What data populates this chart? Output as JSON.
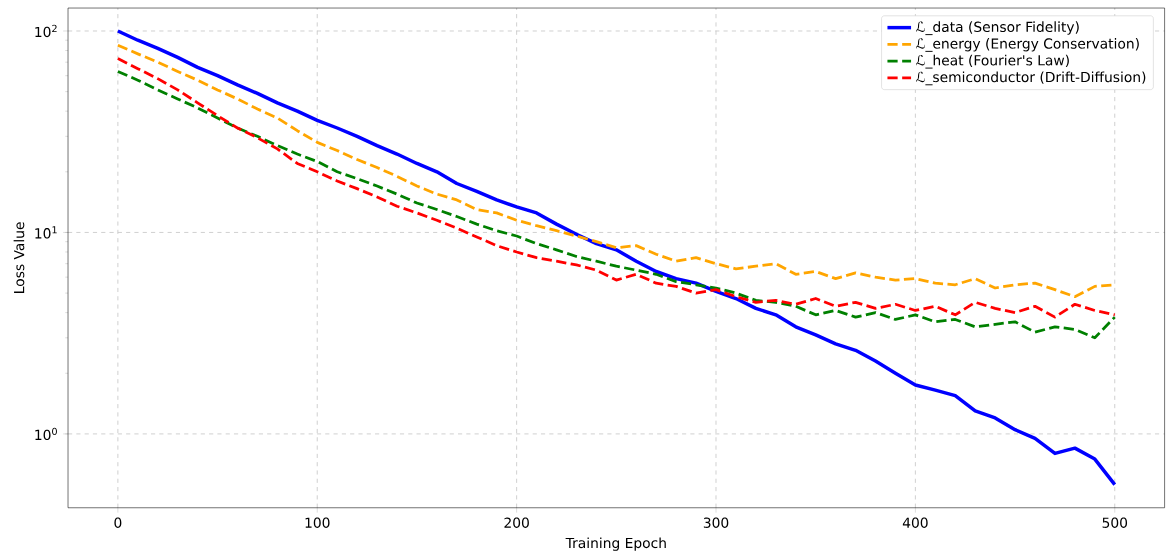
{
  "chart_data": {
    "type": "line",
    "xlabel": "Training Epoch",
    "ylabel": "Loss Value",
    "x": [
      0,
      10,
      20,
      30,
      40,
      50,
      60,
      70,
      80,
      90,
      100,
      110,
      120,
      130,
      140,
      150,
      160,
      170,
      180,
      190,
      200,
      210,
      220,
      230,
      240,
      250,
      260,
      270,
      280,
      290,
      300,
      310,
      320,
      330,
      340,
      350,
      360,
      370,
      380,
      390,
      400,
      410,
      420,
      430,
      440,
      450,
      460,
      470,
      480,
      490,
      500
    ],
    "series": [
      {
        "name": "ℒ_data (Sensor Fidelity)",
        "color": "#0000ff",
        "line_style": "solid",
        "values": [
          100,
          90,
          82,
          74,
          66,
          60,
          54,
          49,
          44,
          40,
          36,
          33,
          30,
          27,
          24.5,
          22,
          20,
          17.5,
          16,
          14.5,
          13.4,
          12.5,
          11,
          9.8,
          8.8,
          8.2,
          7.2,
          6.4,
          5.9,
          5.6,
          5.1,
          4.7,
          4.2,
          3.9,
          3.4,
          3.1,
          2.8,
          2.6,
          2.3,
          2.0,
          1.75,
          1.65,
          1.55,
          1.3,
          1.2,
          1.05,
          0.95,
          0.8,
          0.85,
          0.75,
          0.56
        ]
      },
      {
        "name": "ℒ_energy (Energy Conservation)",
        "color": "#ffa500",
        "line_style": "dashed",
        "values": [
          85,
          77,
          70,
          63,
          57,
          51,
          46,
          41,
          37,
          32,
          28,
          25.5,
          23,
          21,
          19,
          17,
          15.5,
          14.5,
          13,
          12.5,
          11.5,
          10.8,
          10.2,
          9.6,
          9,
          8.4,
          8.6,
          7.8,
          7.2,
          7.5,
          7.0,
          6.6,
          6.8,
          7.0,
          6.2,
          6.4,
          5.9,
          6.3,
          6.0,
          5.8,
          5.9,
          5.6,
          5.5,
          5.9,
          5.3,
          5.5,
          5.6,
          5.2,
          4.8,
          5.4,
          5.5
        ]
      },
      {
        "name": "ℒ_heat (Fourier's Law)",
        "color": "#008000",
        "line_style": "dashed",
        "values": [
          63,
          57,
          51,
          46,
          41.5,
          37,
          33,
          30,
          27,
          24.5,
          22.5,
          20,
          18.5,
          17,
          15.5,
          14,
          13,
          12,
          11,
          10.2,
          9.6,
          8.8,
          8.2,
          7.6,
          7.2,
          6.8,
          6.5,
          6.2,
          5.7,
          5.5,
          5.3,
          5.0,
          4.6,
          4.5,
          4.3,
          3.9,
          4.1,
          3.8,
          4.0,
          3.7,
          3.9,
          3.6,
          3.7,
          3.4,
          3.5,
          3.6,
          3.2,
          3.4,
          3.3,
          3.0,
          3.8
        ]
      },
      {
        "name": "ℒ_semiconductor (Drift-Diffusion)",
        "color": "#ff0000",
        "line_style": "dashed",
        "values": [
          73,
          65,
          58,
          51,
          44,
          38,
          33,
          29.5,
          26,
          22,
          20,
          18,
          16.5,
          15,
          13.5,
          12.5,
          11.5,
          10.5,
          9.5,
          8.6,
          8.0,
          7.5,
          7.2,
          6.9,
          6.5,
          5.8,
          6.2,
          5.6,
          5.4,
          5.0,
          5.2,
          4.8,
          4.5,
          4.6,
          4.4,
          4.7,
          4.3,
          4.5,
          4.2,
          4.4,
          4.1,
          4.3,
          3.9,
          4.5,
          4.2,
          4.0,
          4.3,
          3.8,
          4.4,
          4.1,
          3.9
        ]
      }
    ],
    "xlim": [
      -25,
      525
    ],
    "xticks": [
      0,
      100,
      200,
      300,
      400,
      500
    ],
    "ylim": [
      0.43,
      130
    ],
    "yticks": [
      {
        "value": 1,
        "label": "10$^{0}$"
      },
      {
        "value": 10,
        "label": "10$^{1}$"
      },
      {
        "value": 100,
        "label": "10$^{2}$"
      }
    ],
    "log": "y",
    "grid": true,
    "legend": "top right"
  }
}
